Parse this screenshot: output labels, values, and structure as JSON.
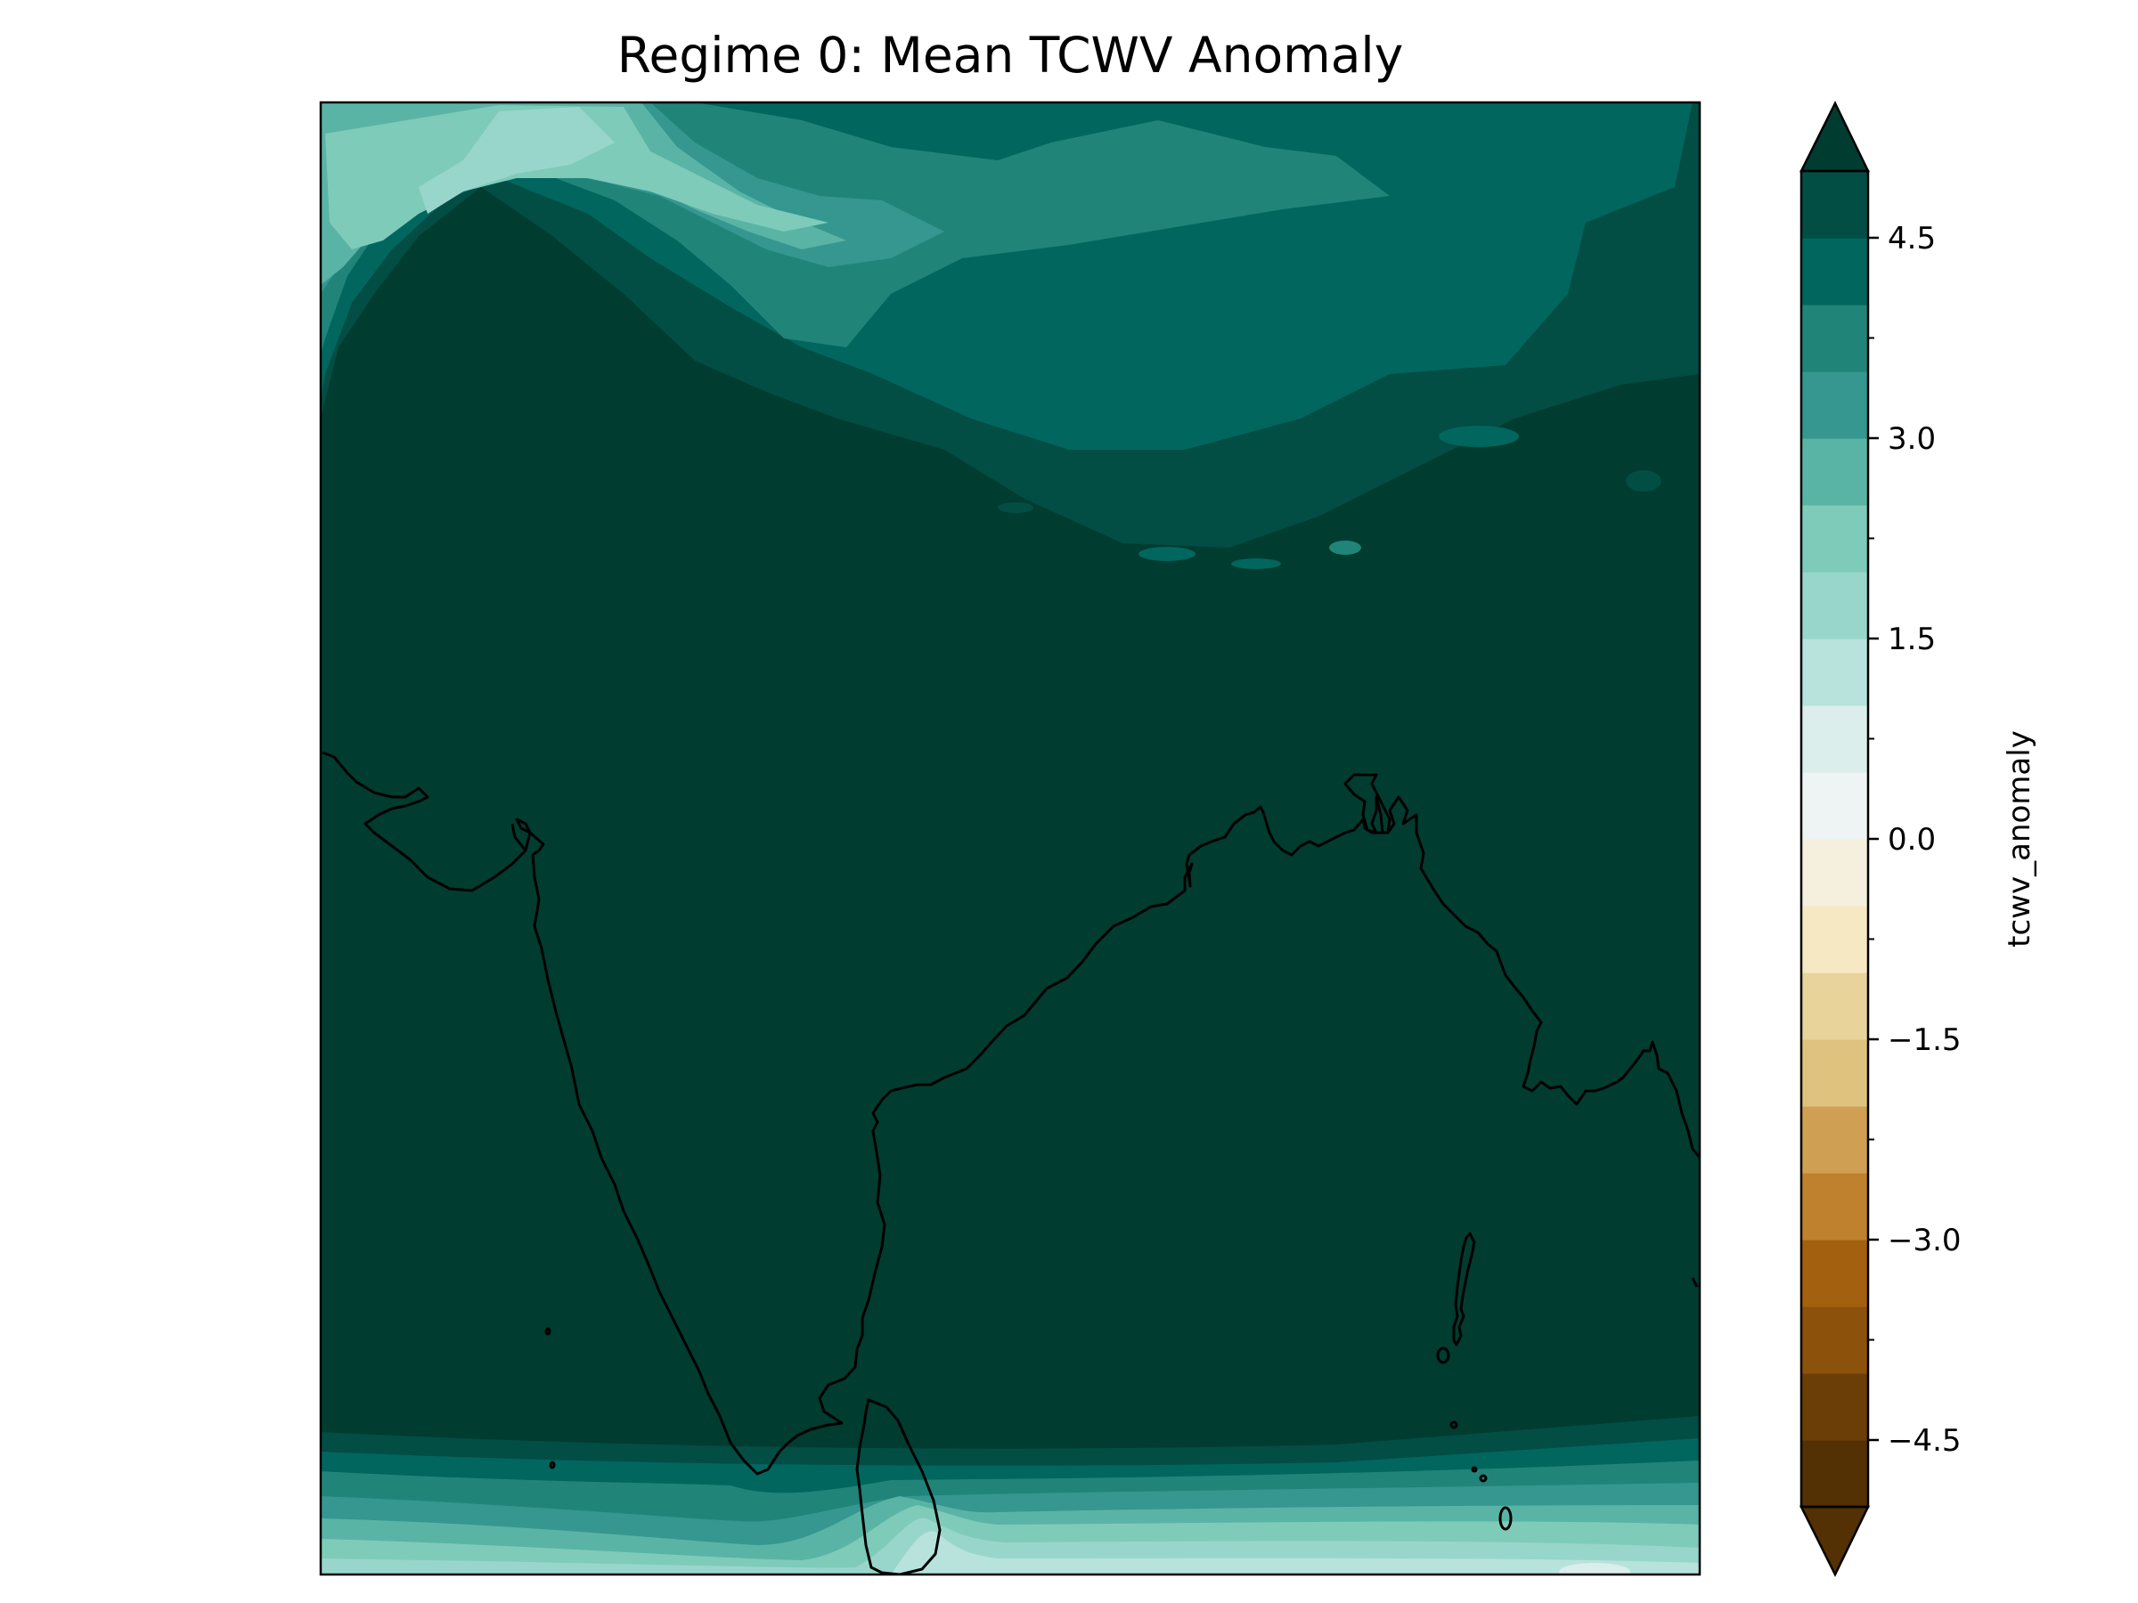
{
  "title": "Regime 0: Mean TCWV Anomaly",
  "colorbar": {
    "label": "tcwv_anomaly",
    "vmin": -5.0,
    "vmax": 5.0,
    "step": 0.5,
    "extend": "both",
    "ticks": [
      {
        "value": 4.5,
        "label": "4.5"
      },
      {
        "value": 3.0,
        "label": "3.0"
      },
      {
        "value": 1.5,
        "label": "1.5"
      },
      {
        "value": 0.0,
        "label": "0.0"
      },
      {
        "value": -1.5,
        "label": "−1.5"
      },
      {
        "value": -3.0,
        "label": "−3.0"
      },
      {
        "value": -4.5,
        "label": "−4.5"
      }
    ],
    "colors": [
      "#543005",
      "#6b3d07",
      "#8c510a",
      "#a3610f",
      "#bf812d",
      "#cf9f53",
      "#dfc27d",
      "#e8d39a",
      "#f6e8c3",
      "#f5efdd",
      "#eef4f3",
      "#dbeeeb",
      "#b8e3dc",
      "#98d6cb",
      "#7fcbb9",
      "#5ab4a6",
      "#35978f",
      "#218479",
      "#01665e",
      "#024d44"
    ],
    "under_color": "#543005",
    "over_color": "#003c30"
  },
  "map": {
    "projection": "PlateCarree",
    "coastlines": true,
    "dominant_color": "#003c30"
  }
}
